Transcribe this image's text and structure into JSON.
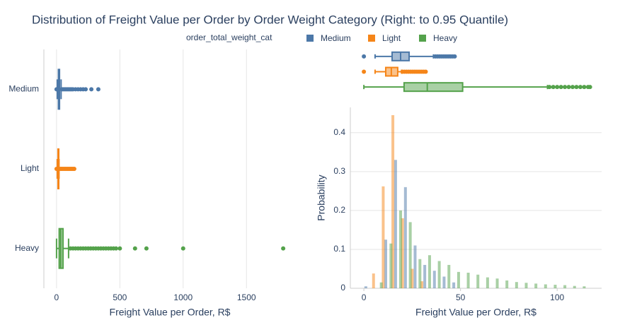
{
  "title": "Distribution of Freight Value per Order by Order Weight Category (Right: to 0.95 Quantile)",
  "legend_title": "order_total_weight_cat",
  "chart_data": [
    {
      "type": "box",
      "orientation": "h",
      "xlabel": "Freight Value per Order, R$",
      "xlim": [
        -100,
        1890
      ],
      "xticks": [
        0,
        500,
        1000,
        1500
      ],
      "grid": true,
      "show_category_labels": true,
      "series": [
        {
          "name": "Medium",
          "color": "#4c78a8",
          "lower": 5.8,
          "q1": 14.6,
          "median": 19,
          "q3": 23.4,
          "upper": 36,
          "outliers": [
            0,
            40,
            50,
            60,
            70,
            80,
            90,
            100,
            110,
            120,
            130,
            150,
            170,
            190,
            210,
            230,
            275,
            330
          ]
        },
        {
          "name": "Light",
          "color": "#f58518",
          "lower": 5.8,
          "q1": 11.3,
          "median": 14.2,
          "q3": 17.5,
          "upper": 19.5,
          "outliers": [
            0,
            22,
            33,
            40,
            50,
            60,
            70,
            80,
            90,
            100,
            110,
            120,
            130,
            140
          ]
        },
        {
          "name": "Heavy",
          "color": "#54a24b",
          "lower": 0,
          "q1": 20.8,
          "median": 32.8,
          "q3": 51.1,
          "upper": 95,
          "outliers": [
            110,
            130,
            150,
            170,
            190,
            210,
            230,
            250,
            270,
            290,
            310,
            330,
            350,
            370,
            390,
            410,
            430,
            450,
            470,
            500,
            620,
            710,
            1000,
            1790
          ]
        }
      ]
    },
    {
      "type": "box",
      "orientation": "h",
      "xlim": [
        -7,
        123
      ],
      "show_category_labels": false,
      "series": [
        {
          "name": "Medium",
          "color": "#4c78a8",
          "lower": 5.8,
          "q1": 14.6,
          "median": 19,
          "q3": 23.4,
          "upper": 36,
          "outliers": [
            0,
            37,
            38,
            39,
            40,
            41,
            42,
            43,
            44,
            45,
            46,
            47
          ]
        },
        {
          "name": "Light",
          "color": "#f58518",
          "lower": 5.8,
          "q1": 11.3,
          "median": 14.2,
          "q3": 17.5,
          "upper": 19.5,
          "outliers": [
            0,
            20,
            21,
            22,
            23,
            24,
            25,
            26,
            27,
            28,
            29,
            30,
            31,
            32
          ]
        },
        {
          "name": "Heavy",
          "color": "#54a24b",
          "lower": 0,
          "q1": 20.8,
          "median": 32.8,
          "q3": 51.1,
          "upper": 95,
          "outliers": [
            96,
            98,
            100,
            102,
            104,
            106,
            108,
            110,
            112,
            114,
            116,
            117
          ]
        }
      ]
    },
    {
      "type": "histogram",
      "xlabel": "Freight Value per Order, R$",
      "ylabel": "Probability",
      "xlim": [
        -7,
        123
      ],
      "xticks": [
        0,
        50,
        100
      ],
      "ylim": [
        0,
        0.465
      ],
      "yticks": [
        0,
        0.1,
        0.2,
        0.3,
        0.4
      ],
      "grid": true,
      "series": [
        {
          "name": "Medium",
          "color": "#4c78a8",
          "x": [
            1,
            11.3,
            16.4,
            21.5,
            26.5,
            31.5,
            36.5,
            41.5,
            46.5
          ],
          "values": [
            0.005,
            0.125,
            0.33,
            0.26,
            0.11,
            0.06,
            0.045,
            0.03,
            0.015
          ]
        },
        {
          "name": "Light",
          "color": "#f58518",
          "x": [
            5,
            10,
            15,
            20,
            25,
            30
          ],
          "values": [
            0.038,
            0.262,
            0.445,
            0.18,
            0.05,
            0.018
          ]
        },
        {
          "name": "Heavy",
          "color": "#54a24b",
          "x": [
            9,
            14,
            19,
            24,
            29,
            34,
            39,
            44,
            49,
            54,
            59,
            64,
            69,
            74,
            79,
            84,
            89,
            94,
            99,
            104,
            109,
            114
          ],
          "values": [
            0.015,
            0.115,
            0.2,
            0.17,
            0.075,
            0.085,
            0.07,
            0.06,
            0.042,
            0.04,
            0.035,
            0.028,
            0.025,
            0.02,
            0.016,
            0.014,
            0.012,
            0.01,
            0.009,
            0.008,
            0.006,
            0.005
          ]
        }
      ]
    }
  ]
}
